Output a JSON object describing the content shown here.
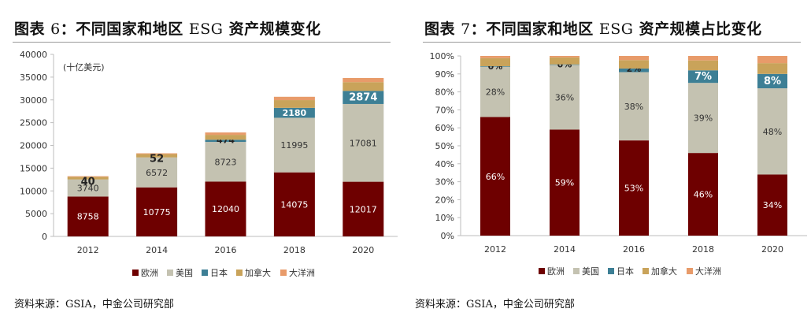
{
  "left": {
    "title_label": "图表",
    "title_num": "6",
    "title_sep": "：",
    "title_cn1": "不同国家和地区",
    "title_esg": "ESG",
    "title_cn2": "资产规模变化",
    "source_prefix": "资料来源：",
    "source_org": "GSIA",
    "source_rest": "，中金公司研究部"
  },
  "right": {
    "title_label": "图表",
    "title_num": "7",
    "title_sep": "：",
    "title_cn1": "不同国家和地区",
    "title_esg": "ESG",
    "title_cn2": "资产规模占比变化",
    "source_prefix": "资料来源：",
    "source_org": "GSIA",
    "source_rest": "，中金公司研究部"
  },
  "colors": {
    "europe": "#6e0000",
    "usa": "#c4c2b1",
    "japan": "#3d7f95",
    "canada": "#c9a35a",
    "australasia": "#e89b6a"
  },
  "chart_data": [
    {
      "type": "bar",
      "stacked": true,
      "title": "不同国家和地区ESG资产规模变化",
      "unit_label": "(十亿美元)",
      "categories": [
        "2012",
        "2014",
        "2016",
        "2018",
        "2020"
      ],
      "ylim": [
        0,
        40000
      ],
      "yticks": [
        "0",
        "5000",
        "10000",
        "15000",
        "20000",
        "25000",
        "30000",
        "35000",
        "40000"
      ],
      "series": [
        {
          "name": "欧洲",
          "color_key": "europe",
          "values": [
            8758,
            10775,
            12040,
            14075,
            12017
          ],
          "labels": [
            "8758",
            "10775",
            "12040",
            "14075",
            "12017"
          ]
        },
        {
          "name": "美国",
          "color_key": "usa",
          "values": [
            3740,
            6572,
            8723,
            11995,
            17081
          ],
          "labels": [
            "3740",
            "6572",
            "8723",
            "11995",
            "17081"
          ]
        },
        {
          "name": "日本",
          "color_key": "japan",
          "values": [
            10,
            7,
            474,
            2180,
            2874
          ],
          "labels": [
            "",
            "",
            "474",
            "2180",
            "2874"
          ]
        },
        {
          "name": "加拿大",
          "color_key": "canada",
          "values": [
            589,
            729,
            1086,
            1699,
            1931
          ],
          "labels": [
            "",
            "",
            "",
            "",
            ""
          ]
        },
        {
          "name": "大洋洲",
          "color_key": "australasia",
          "values": [
            134,
            180,
            516,
            734,
            906
          ],
          "labels": [
            "",
            "",
            "",
            "",
            ""
          ]
        }
      ],
      "annotations": [
        {
          "category": "2012",
          "text": "40"
        },
        {
          "category": "2014",
          "text": "52"
        }
      ],
      "legend_position": "bottom"
    },
    {
      "type": "bar",
      "stacked": true,
      "percent": true,
      "title": "不同国家和地区ESG资产规模占比变化",
      "categories": [
        "2012",
        "2014",
        "2016",
        "2018",
        "2020"
      ],
      "ylim": [
        0,
        100
      ],
      "yticks": [
        "0%",
        "10%",
        "20%",
        "30%",
        "40%",
        "50%",
        "60%",
        "70%",
        "80%",
        "90%",
        "100%"
      ],
      "series": [
        {
          "name": "欧洲",
          "color_key": "europe",
          "values": [
            66,
            59,
            53,
            46,
            34
          ],
          "labels": [
            "66%",
            "59%",
            "53%",
            "46%",
            "34%"
          ]
        },
        {
          "name": "美国",
          "color_key": "usa",
          "values": [
            28,
            36,
            38,
            39,
            48
          ],
          "labels": [
            "28%",
            "36%",
            "38%",
            "39%",
            "48%"
          ]
        },
        {
          "name": "日本",
          "color_key": "japan",
          "values": [
            0.3,
            0.3,
            2,
            7,
            8
          ],
          "labels": [
            "0%",
            "0%",
            "2%",
            "7%",
            "8%"
          ]
        },
        {
          "name": "加拿大",
          "color_key": "canada",
          "values": [
            4.5,
            3.9,
            4.7,
            5.5,
            6
          ],
          "labels": [
            "",
            "",
            "",
            "",
            ""
          ]
        },
        {
          "name": "大洋洲",
          "color_key": "australasia",
          "values": [
            1.2,
            0.8,
            2.3,
            2.5,
            4
          ],
          "labels": [
            "",
            "",
            "",
            "",
            ""
          ]
        }
      ],
      "legend_position": "bottom"
    }
  ]
}
